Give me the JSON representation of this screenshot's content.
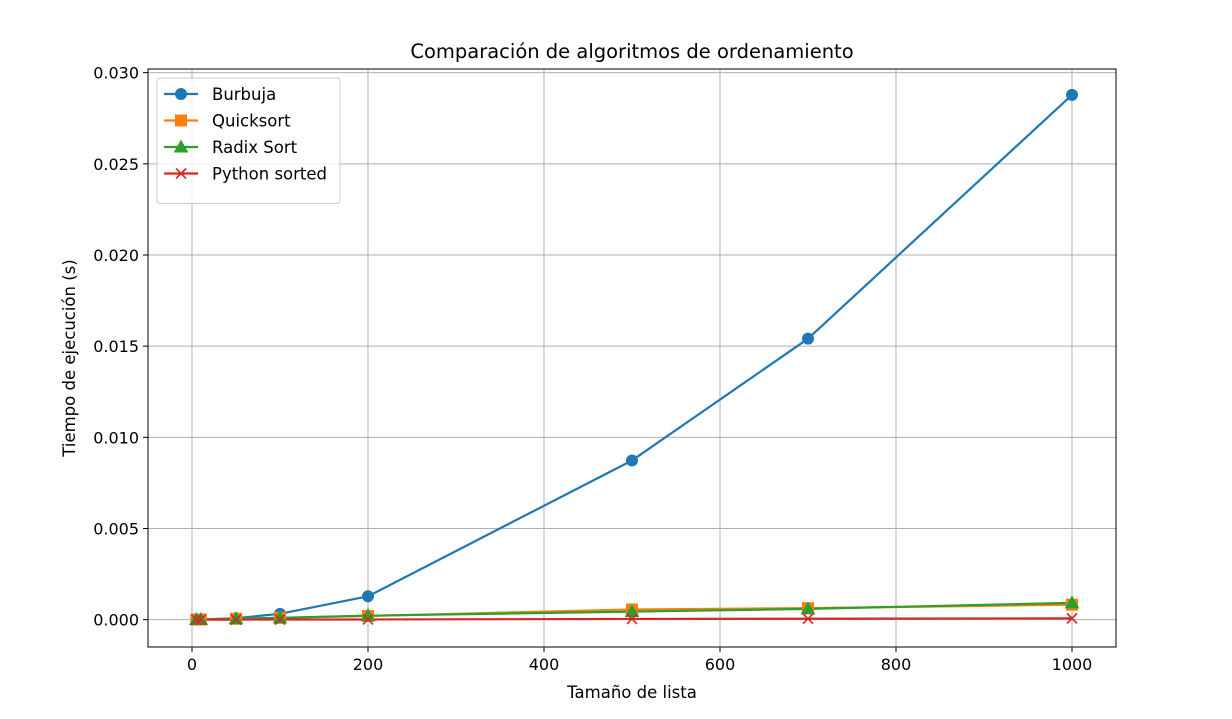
{
  "chart_data": {
    "type": "line",
    "title": "Comparación de algoritmos de ordenamiento",
    "xlabel": "Tamaño de lista",
    "ylabel": "Tiempo de ejecución (s)",
    "xlim": [
      -50,
      1050
    ],
    "ylim": [
      -0.0015,
      0.0302
    ],
    "xticks": [
      0,
      200,
      400,
      600,
      800,
      1000
    ],
    "yticks": [
      0.0,
      0.005,
      0.01,
      0.015,
      0.02,
      0.025,
      0.03
    ],
    "xtick_labels": [
      "0",
      "200",
      "400",
      "600",
      "800",
      "1000"
    ],
    "ytick_labels": [
      "0.000",
      "0.005",
      "0.010",
      "0.015",
      "0.020",
      "0.025",
      "0.030"
    ],
    "grid": true,
    "legend_position": "top-left",
    "x": [
      5,
      10,
      50,
      100,
      200,
      500,
      700,
      1000
    ],
    "series": [
      {
        "name": "Burbuja",
        "marker": "circle",
        "color": "#1f77b4",
        "values": [
          1e-05,
          1e-05,
          8e-05,
          0.00032,
          0.00128,
          0.00873,
          0.01541,
          0.02878
        ]
      },
      {
        "name": "Quicksort",
        "marker": "square",
        "color": "#ff7f0e",
        "values": [
          5e-06,
          1e-05,
          5e-05,
          0.0001,
          0.0002,
          0.00056,
          0.00063,
          0.00082
        ]
      },
      {
        "name": "Radix Sort",
        "marker": "triangle",
        "color": "#2ca02c",
        "values": [
          1e-05,
          1e-05,
          5e-05,
          0.0001,
          0.00022,
          0.00044,
          0.00059,
          0.00092
        ]
      },
      {
        "name": "Python sorted",
        "marker": "x",
        "color": "#d62728",
        "values": [
          1e-06,
          1e-06,
          3e-06,
          6e-06,
          1e-05,
          4e-05,
          5e-05,
          7e-05
        ]
      }
    ]
  }
}
